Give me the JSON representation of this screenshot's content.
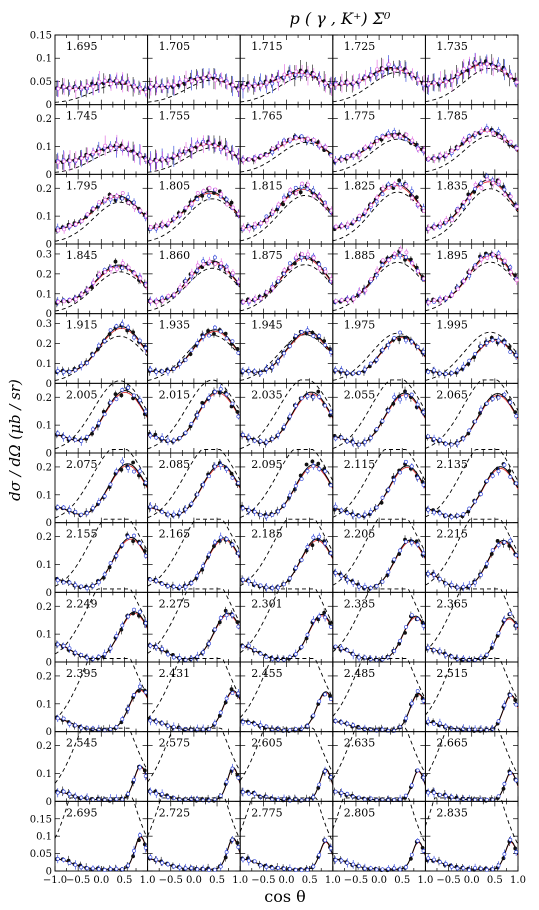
{
  "chart_data": {
    "type": "scatter",
    "title": "p ( γ , K⁺) Σ⁰",
    "xlabel": "cos θ",
    "ylabel": "dσ / dΩ    (μb / sr)",
    "xlim": [
      -1.0,
      1.0
    ],
    "x_tick_labels": [
      "−1.0",
      "−0.5",
      "0.0",
      "0.5",
      "1.0"
    ],
    "rows": [
      {
        "ylim": [
          0,
          0.15
        ],
        "y_ticks": [
          "0",
          "0.05",
          "0.1",
          "0.15"
        ],
        "energies": [
          "1.695",
          "1.705",
          "1.715",
          "1.725",
          "1.735"
        ]
      },
      {
        "ylim": [
          0,
          0.25
        ],
        "y_ticks": [
          "0",
          "0.1",
          "0.2"
        ],
        "energies": [
          "1.745",
          "1.755",
          "1.765",
          "1.775",
          "1.785"
        ]
      },
      {
        "ylim": [
          0,
          0.25
        ],
        "y_ticks": [
          "0",
          "0.1",
          "0.2"
        ],
        "energies": [
          "1.795",
          "1.805",
          "1.815",
          "1.825",
          "1.835"
        ]
      },
      {
        "ylim": [
          0,
          0.35
        ],
        "y_ticks": [
          "0",
          "0.1",
          "0.2",
          "0.3"
        ],
        "energies": [
          "1.845",
          "1.860",
          "1.875",
          "1.885",
          "1.895"
        ]
      },
      {
        "ylim": [
          0,
          0.35
        ],
        "y_ticks": [
          "0",
          "0.1",
          "0.2",
          "0.3"
        ],
        "energies": [
          "1.915",
          "1.935",
          "1.945",
          "1.975",
          "1.995"
        ]
      },
      {
        "ylim": [
          0,
          0.25
        ],
        "y_ticks": [
          "0",
          "0.1",
          "0.2"
        ],
        "energies": [
          "2.005",
          "2.015",
          "2.035",
          "2.055",
          "2.065"
        ]
      },
      {
        "ylim": [
          0,
          0.25
        ],
        "y_ticks": [
          "0",
          "0.1",
          "0.2"
        ],
        "energies": [
          "2.075",
          "2.085",
          "2.095",
          "2.115",
          "2.135"
        ]
      },
      {
        "ylim": [
          0,
          0.25
        ],
        "y_ticks": [
          "0",
          "0.1",
          "0.2"
        ],
        "energies": [
          "2.155",
          "2.165",
          "2.185",
          "2.205",
          "2.215"
        ]
      },
      {
        "ylim": [
          0,
          0.25
        ],
        "y_ticks": [
          "0",
          "0.1",
          "0.2"
        ],
        "energies": [
          "2.249",
          "2.275",
          "2.301",
          "2.335",
          "2.365"
        ]
      },
      {
        "ylim": [
          0,
          0.25
        ],
        "y_ticks": [
          "0",
          "0.1",
          "0.2"
        ],
        "energies": [
          "2.395",
          "2.431",
          "2.455",
          "2.485",
          "2.515"
        ]
      },
      {
        "ylim": [
          0,
          0.25
        ],
        "y_ticks": [
          "0",
          "0.1",
          "0.2"
        ],
        "energies": [
          "2.545",
          "2.575",
          "2.605",
          "2.635",
          "2.665"
        ]
      },
      {
        "ylim": [
          0,
          0.2
        ],
        "y_ticks": [
          "0",
          "0.05",
          "0.1",
          "0.15"
        ],
        "energies": [
          "2.695",
          "2.725",
          "2.775",
          "2.805",
          "2.835"
        ]
      }
    ],
    "colors": {
      "series_black": "#111111",
      "series_blue": "#1f35d6",
      "series_magenta": "#e05ee0",
      "series_red": "#e02020",
      "series_green": "#22aa22",
      "model_dashed": "#000000"
    }
  }
}
